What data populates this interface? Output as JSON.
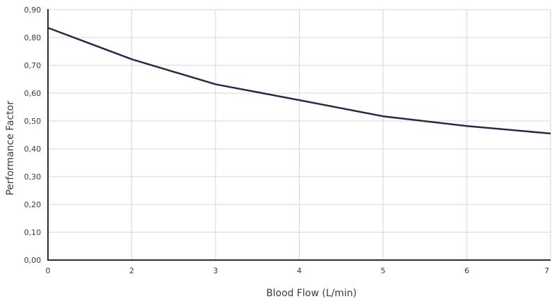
{
  "chart_data": {
    "type": "line",
    "title": "",
    "xlabel": "Blood Flow (L/min)",
    "ylabel": "Performance Factor",
    "x_ticks": [
      "0",
      "2",
      "3",
      "4",
      "5",
      "6",
      "7"
    ],
    "y_ticks": [
      "0,00",
      "0,10",
      "0,20",
      "0,30",
      "0,40",
      "0,50",
      "0,60",
      "0,70",
      "0,80",
      "0,90"
    ],
    "ylim": [
      0,
      0.9
    ],
    "grid": true,
    "legend": "none",
    "series": [
      {
        "values": [
          0.835,
          0.722,
          0.632,
          0.575,
          0.517,
          0.482,
          0.455
        ]
      }
    ],
    "colors": {
      "line": "#262a48",
      "grid": "#d6d6d6",
      "axis": "#2b2b2b"
    }
  }
}
